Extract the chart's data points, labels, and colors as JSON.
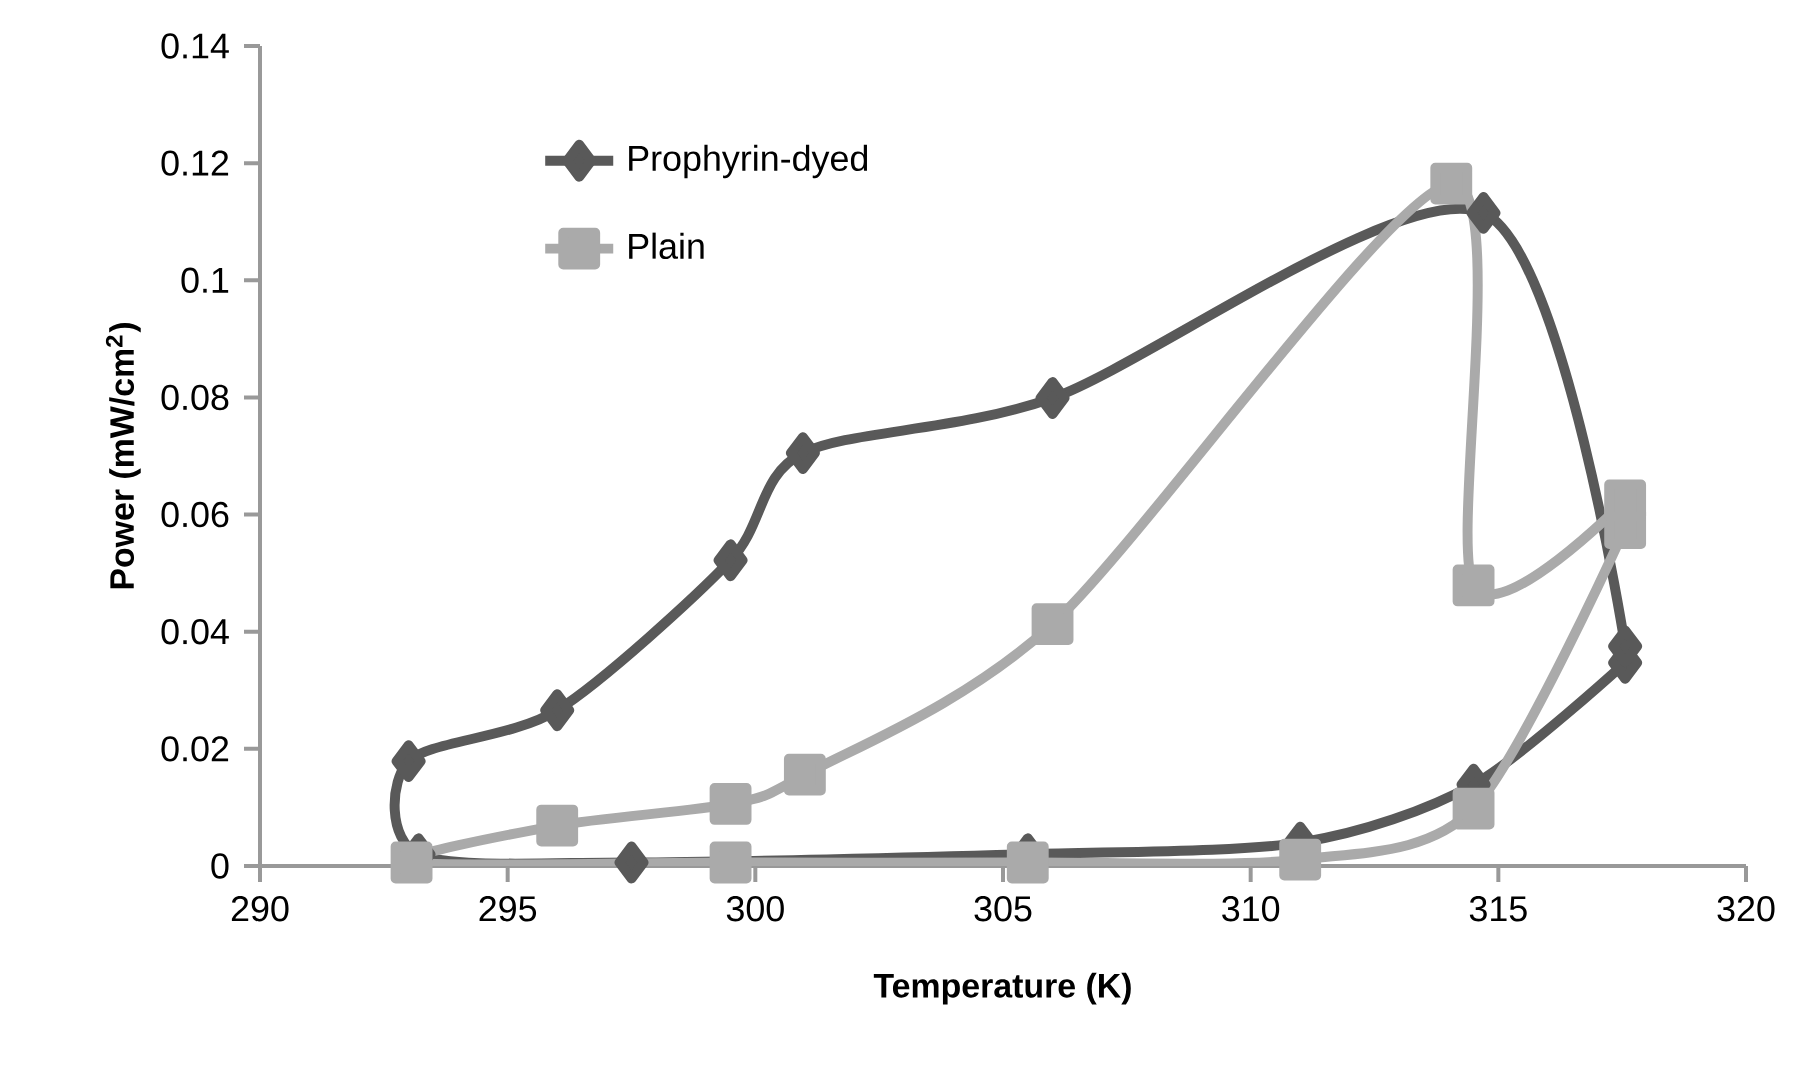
{
  "chart_data": {
    "type": "line",
    "xlabel": "Temperature (K)",
    "ylabel": "Power (mW/cm$^{2}$)",
    "xlim": [
      290,
      320
    ],
    "xticks": [
      290,
      295,
      300,
      305,
      310,
      315,
      320
    ],
    "ylim": [
      0,
      0.14
    ],
    "yticks": [
      0,
      0.02,
      0.04,
      0.06,
      0.08,
      0.1,
      0.12,
      0.14
    ],
    "grid": false,
    "legend": "top left",
    "series": [
      {
        "name": "Prophyrin-dyed",
        "color": "#595959",
        "marker": "diamond",
        "x": [
          317.56,
          314.5,
          311.0,
          305.5,
          297.5,
          293.2,
          293.0,
          296.0,
          299.5,
          300.96,
          306.0,
          314.7,
          317.56
        ],
        "values": [
          0.0347,
          0.0139,
          0.004,
          0.002,
          0.0006,
          0.002,
          0.0179,
          0.0266,
          0.0522,
          0.0705,
          0.0799,
          0.1115,
          0.0375
        ]
      },
      {
        "name": "Plain",
        "color": "#aaaaaa",
        "marker": "square",
        "x": [
          317.56,
          314.5,
          311.0,
          305.5,
          299.5,
          293.06,
          296.0,
          299.5,
          301.0,
          306.0,
          314.05,
          314.5,
          317.56
        ],
        "values": [
          0.0577,
          0.0098,
          0.0011,
          0.0006,
          0.0006,
          0.0006,
          0.0069,
          0.0106,
          0.0156,
          0.0413,
          0.1165,
          0.0479,
          0.0624
        ]
      }
    ]
  }
}
